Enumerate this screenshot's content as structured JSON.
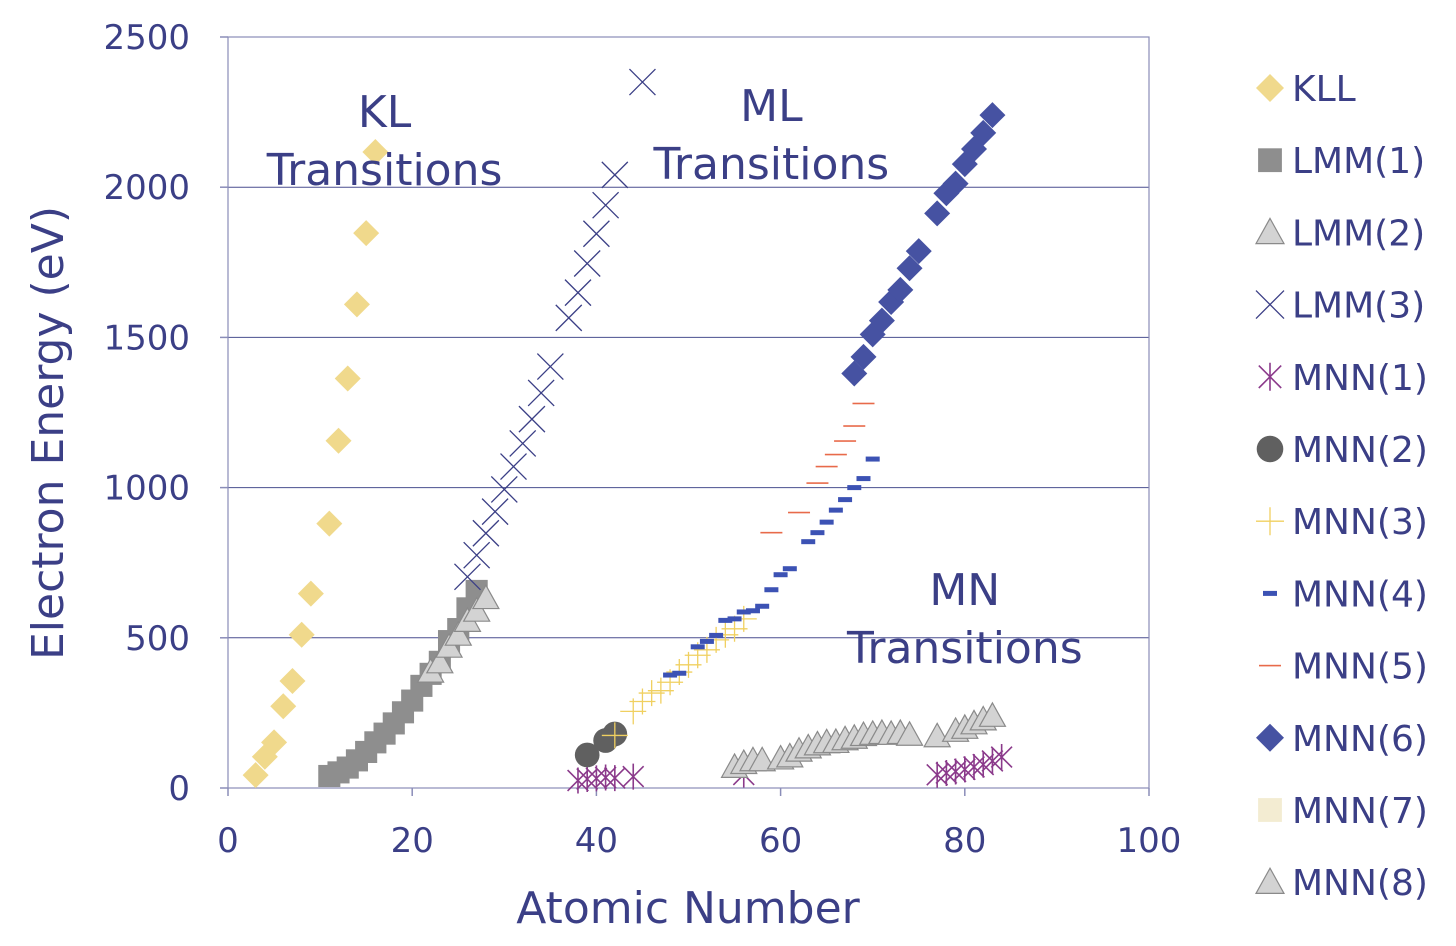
{
  "chart_data": {
    "type": "scatter",
    "xlabel": "Atomic Number",
    "ylabel": "Electron Energy (eV)",
    "xlim": [
      0,
      100
    ],
    "ylim": [
      0,
      2500
    ],
    "x_ticks": [
      "0",
      "20",
      "40",
      "60",
      "80",
      "100"
    ],
    "y_ticks": [
      "0",
      "500",
      "1000",
      "1500",
      "2000",
      "2500"
    ],
    "grid": "horizontal",
    "legend_position": "right",
    "annotations": [
      {
        "lines": [
          "KL",
          "Transitions"
        ],
        "x": 17,
        "y": 2200
      },
      {
        "lines": [
          "ML",
          "Transitions"
        ],
        "x": 59,
        "y": 2220
      },
      {
        "lines": [
          "MN",
          "Transitions"
        ],
        "x": 80,
        "y": 610
      }
    ],
    "series": [
      {
        "name": "KLL",
        "marker": "diamond",
        "color": "#f0d98c",
        "points": [
          [
            3,
            43
          ],
          [
            4,
            104
          ],
          [
            5,
            152
          ],
          [
            6,
            272
          ],
          [
            7,
            356
          ],
          [
            8,
            510
          ],
          [
            9,
            647
          ],
          [
            11,
            880
          ],
          [
            12,
            1156
          ],
          [
            13,
            1363
          ],
          [
            14,
            1610
          ],
          [
            15,
            1847
          ],
          [
            16,
            2117
          ]
        ]
      },
      {
        "name": "LMM(1)",
        "marker": "square",
        "color": "#8e8e8e",
        "points": [
          [
            11,
            40
          ],
          [
            12,
            52
          ],
          [
            13,
            68
          ],
          [
            14,
            92
          ],
          [
            15,
            120
          ],
          [
            16,
            152
          ],
          [
            17,
            181
          ],
          [
            18,
            215
          ],
          [
            19,
            252
          ],
          [
            20,
            291
          ],
          [
            21,
            340
          ],
          [
            22,
            380
          ],
          [
            23,
            420
          ],
          [
            24,
            489
          ],
          [
            25,
            529
          ],
          [
            26,
            598
          ],
          [
            27,
            656
          ]
        ]
      },
      {
        "name": "LMM(2)",
        "marker": "triangle",
        "color": "#d3d3d3",
        "points": [
          [
            22,
            387
          ],
          [
            23,
            418
          ],
          [
            24,
            470
          ],
          [
            25,
            510
          ],
          [
            26,
            556
          ],
          [
            27,
            590
          ],
          [
            28,
            632
          ]
        ]
      },
      {
        "name": "LMM(3)",
        "marker": "x",
        "color": "#3b3f86",
        "points": [
          [
            26,
            703
          ],
          [
            27,
            775
          ],
          [
            28,
            848
          ],
          [
            29,
            920
          ],
          [
            30,
            994
          ],
          [
            31,
            1070
          ],
          [
            32,
            1147
          ],
          [
            33,
            1228
          ],
          [
            34,
            1315
          ],
          [
            35,
            1403
          ],
          [
            37,
            1565
          ],
          [
            38,
            1649
          ],
          [
            39,
            1746
          ],
          [
            40,
            1845
          ],
          [
            41,
            1940
          ],
          [
            42,
            2041
          ],
          [
            45,
            2350
          ]
        ]
      },
      {
        "name": "MNN(1)",
        "marker": "star",
        "color": "#8b3a8b",
        "points": [
          [
            38,
            25
          ],
          [
            39,
            30
          ],
          [
            40,
            32
          ],
          [
            41,
            35
          ],
          [
            42,
            33
          ],
          [
            44,
            38
          ],
          [
            56,
            45
          ],
          [
            77,
            44
          ],
          [
            78,
            50
          ],
          [
            79,
            55
          ],
          [
            80,
            62
          ],
          [
            81,
            70
          ],
          [
            82,
            78
          ],
          [
            83,
            90
          ],
          [
            84,
            103
          ]
        ]
      },
      {
        "name": "MNN(2)",
        "marker": "circle",
        "color": "#606060",
        "points": [
          [
            39,
            110
          ],
          [
            41,
            158
          ],
          [
            42,
            180
          ]
        ]
      },
      {
        "name": "MNN(3)",
        "marker": "plus",
        "color": "#f0d060",
        "points": [
          [
            42,
            175
          ],
          [
            44,
            255
          ],
          [
            45,
            288
          ],
          [
            46,
            316
          ],
          [
            47,
            324
          ],
          [
            48,
            352
          ],
          [
            49,
            386
          ],
          [
            50,
            410
          ],
          [
            51,
            442
          ],
          [
            52,
            460
          ],
          [
            53,
            493
          ],
          [
            54,
            510
          ],
          [
            55,
            530
          ],
          [
            56,
            563
          ]
        ]
      },
      {
        "name": "MNN(4)",
        "marker": "dash",
        "color": "#3c52b4",
        "points": [
          [
            48,
            376
          ],
          [
            49,
            382
          ],
          [
            51,
            470
          ],
          [
            52,
            488
          ],
          [
            53,
            508
          ],
          [
            54,
            558
          ],
          [
            55,
            563
          ],
          [
            56,
            586
          ],
          [
            57,
            590
          ],
          [
            58,
            605
          ],
          [
            59,
            660
          ],
          [
            60,
            710
          ],
          [
            61,
            730
          ],
          [
            63,
            820
          ],
          [
            64,
            850
          ],
          [
            65,
            885
          ],
          [
            66,
            925
          ],
          [
            67,
            960
          ],
          [
            68,
            1000
          ],
          [
            69,
            1030
          ],
          [
            70,
            1095
          ]
        ]
      },
      {
        "name": "MNN(5)",
        "marker": "hline",
        "color": "#e86a4a",
        "points": [
          [
            59,
            850
          ],
          [
            62,
            917
          ],
          [
            64,
            1015
          ],
          [
            65,
            1070
          ],
          [
            66,
            1110
          ],
          [
            67,
            1155
          ],
          [
            68,
            1205
          ],
          [
            69,
            1280
          ]
        ]
      },
      {
        "name": "MNN(6)",
        "marker": "diamond",
        "color": "#4652a2",
        "points": [
          [
            68,
            1380
          ],
          [
            69,
            1435
          ],
          [
            70,
            1510
          ],
          [
            71,
            1556
          ],
          [
            72,
            1618
          ],
          [
            73,
            1658
          ],
          [
            74,
            1730
          ],
          [
            75,
            1787
          ],
          [
            77,
            1913
          ],
          [
            78,
            1980
          ],
          [
            79,
            2012
          ],
          [
            80,
            2077
          ],
          [
            81,
            2127
          ],
          [
            82,
            2181
          ],
          [
            83,
            2240
          ]
        ]
      },
      {
        "name": "MNN(7)",
        "marker": "square",
        "color": "#f3ecd2",
        "points": []
      },
      {
        "name": "MNN(8)",
        "marker": "triangle",
        "color": "#d3d3d3",
        "points": [
          [
            55,
            70
          ],
          [
            56,
            83
          ],
          [
            57,
            92
          ],
          [
            58,
            92
          ],
          [
            60,
            98
          ],
          [
            61,
            105
          ],
          [
            62,
            124
          ],
          [
            63,
            135
          ],
          [
            64,
            145
          ],
          [
            65,
            152
          ],
          [
            66,
            153
          ],
          [
            67,
            162
          ],
          [
            68,
            167
          ],
          [
            69,
            176
          ],
          [
            70,
            180
          ],
          [
            71,
            183
          ],
          [
            72,
            180
          ],
          [
            73,
            183
          ],
          [
            74,
            177
          ],
          [
            77,
            172
          ],
          [
            79,
            190
          ],
          [
            80,
            200
          ],
          [
            81,
            215
          ],
          [
            82,
            228
          ],
          [
            83,
            240
          ]
        ]
      }
    ]
  }
}
